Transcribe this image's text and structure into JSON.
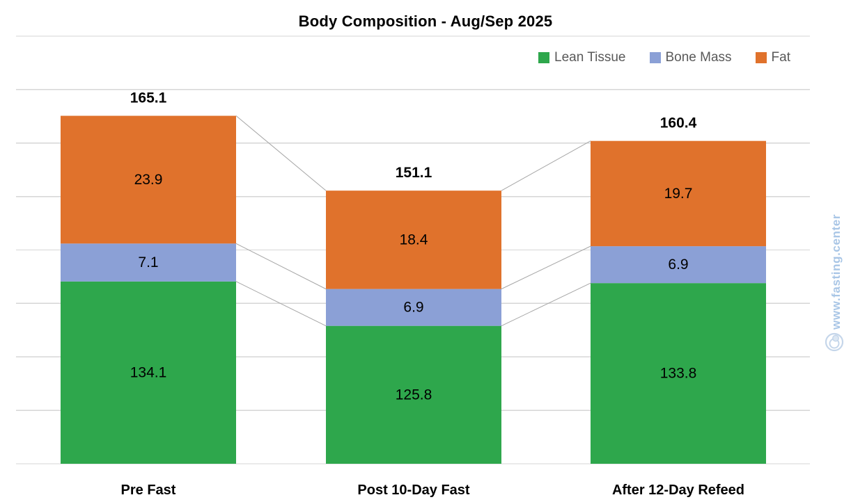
{
  "chart_data": {
    "type": "bar",
    "stacked": true,
    "title": "Body Composition - Aug/Sep 2025",
    "categories": [
      "Pre Fast",
      "Post 10-Day Fast",
      "After 12-Day Refeed"
    ],
    "series": [
      {
        "name": "Lean Tissue",
        "color": "#2EA74C",
        "values": [
          134.1,
          125.8,
          133.8
        ]
      },
      {
        "name": "Bone Mass",
        "color": "#8BA0D6",
        "values": [
          7.1,
          6.9,
          6.9
        ]
      },
      {
        "name": "Fat",
        "color": "#E0722C",
        "values": [
          23.9,
          18.4,
          19.7
        ]
      }
    ],
    "total_labels": [
      "165.1",
      "151.1",
      "160.4"
    ],
    "segment_labels_shown": true,
    "ylim": [
      100,
      180
    ],
    "gridline_step": 10,
    "grid": true,
    "y_axis_labels_shown": false,
    "legend_position": "top-right",
    "connector_lines": true,
    "colors": {
      "gridline": "#D6D6D6",
      "connector": "#A6A6A6",
      "legend_text": "#595959",
      "label_text": "#000000"
    }
  },
  "watermark": {
    "symbol": "©",
    "url": "www.fasting.center",
    "color": "#A9C6E6"
  }
}
